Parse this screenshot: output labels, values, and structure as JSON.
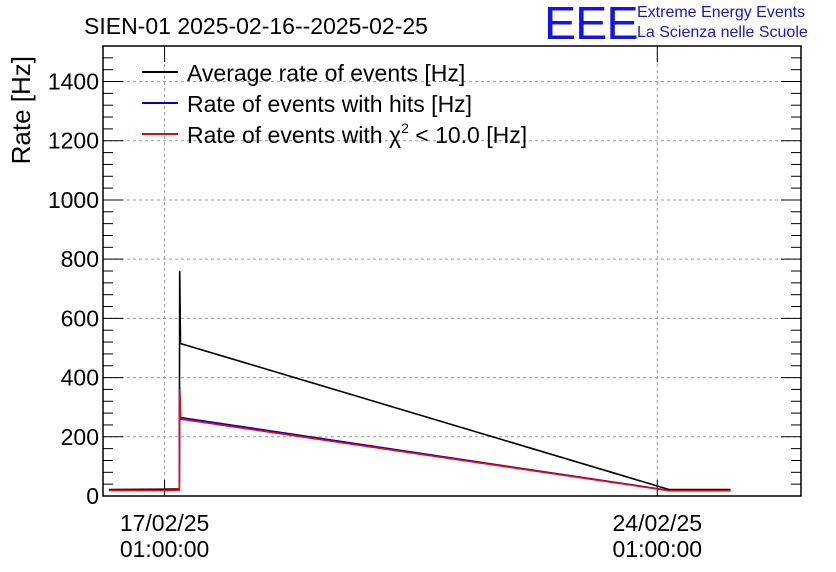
{
  "logo": {
    "mark": "EEE",
    "line1": "Extreme Energy Events",
    "line2": "La Scienza nelle Scuole",
    "color": "#1414e6"
  },
  "chart_data": {
    "type": "line",
    "title": "SIEN-01 2025-02-16--2025-02-25",
    "xlabel": "",
    "ylabel": "Rate [Hz]",
    "x_unit": "days",
    "xlim": [
      "2025-02-16T04:00",
      "2025-02-26T02:00"
    ],
    "ylim": [
      0,
      1520
    ],
    "yticks": [
      0,
      200,
      400,
      600,
      800,
      1000,
      1200,
      1400
    ],
    "xticks": [
      {
        "x": "2025-02-17T01:00",
        "date": "17/02/25",
        "time": "01:00:00"
      },
      {
        "x": "2025-02-24T01:00",
        "date": "24/02/25",
        "time": "01:00:00"
      }
    ],
    "grid": true,
    "legend_position": "top-left",
    "series": [
      {
        "name": "Average rate of events [Hz]",
        "legend_label": "Average rate of events [Hz]",
        "color": "#000000",
        "points": [
          [
            "2025-02-16T06:00",
            22
          ],
          [
            "2025-02-17T01:00",
            23
          ],
          [
            "2025-02-17T06:00",
            24
          ],
          [
            "2025-02-17T06:10",
            760
          ],
          [
            "2025-02-17T06:25",
            515
          ],
          [
            "2025-02-24T05:00",
            22
          ],
          [
            "2025-02-25T02:00",
            22
          ]
        ]
      },
      {
        "name": "Rate of events with hits [Hz]",
        "legend_label": "Rate of events with hits [Hz]",
        "color": "#0000cc",
        "points": [
          [
            "2025-02-16T06:00",
            20
          ],
          [
            "2025-02-17T01:00",
            20
          ],
          [
            "2025-02-17T06:00",
            21
          ],
          [
            "2025-02-17T06:10",
            370
          ],
          [
            "2025-02-17T06:25",
            265
          ],
          [
            "2025-02-24T05:00",
            19
          ],
          [
            "2025-02-25T02:00",
            19
          ]
        ]
      },
      {
        "name": "Rate of events with χ² < 10.0 [Hz]",
        "legend_label": "Rate of events with",
        "legend_chi": "χ",
        "legend_sup": "2",
        "legend_tail": " < 10.0 [Hz]",
        "color": "#ff0000",
        "points": [
          [
            "2025-02-16T06:00",
            19
          ],
          [
            "2025-02-17T01:00",
            19
          ],
          [
            "2025-02-17T06:00",
            20
          ],
          [
            "2025-02-17T06:10",
            360
          ],
          [
            "2025-02-17T06:25",
            260
          ],
          [
            "2025-02-24T05:00",
            18
          ],
          [
            "2025-02-25T02:00",
            18
          ]
        ]
      }
    ]
  }
}
